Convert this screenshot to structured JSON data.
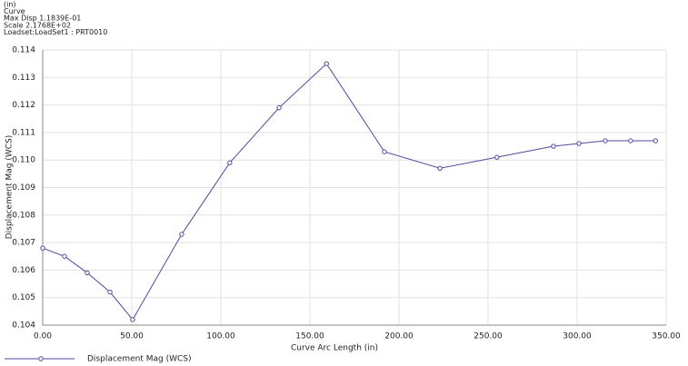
{
  "chart_data": {
    "type": "line",
    "annotations": [
      "(in)",
      "Curve",
      "Max Disp  1.1839E-01",
      "Scale  2.1768E+02",
      "Loadset:LoadSet1 :  PRT0010"
    ],
    "x_label": "Curve Arc Length (in)",
    "y_label": "Displacement Mag (WCS)",
    "x": [
      0,
      12.2,
      25,
      37.8,
      50.5,
      78,
      105,
      132.7,
      159.3,
      191.8,
      223,
      255,
      286.7,
      301,
      315.8,
      330,
      344
    ],
    "series": [
      {
        "name": "Displacement Mag (WCS)",
        "color": "#4b4b9e",
        "values": [
          0.1068,
          0.1065,
          0.1059,
          0.1052,
          0.1042,
          0.1073,
          0.1099,
          0.1119,
          0.1135,
          0.1103,
          0.1097,
          0.1101,
          0.1105,
          0.1106,
          0.1107,
          0.1107,
          0.1107
        ]
      }
    ],
    "xlim": [
      0,
      350
    ],
    "xticks": [
      {
        "value": 0,
        "label": "0.00"
      },
      {
        "value": 50,
        "label": "50.00"
      },
      {
        "value": 100,
        "label": "100.00"
      },
      {
        "value": 150,
        "label": "150.00"
      },
      {
        "value": 200,
        "label": "200.00"
      },
      {
        "value": 250,
        "label": "250.00"
      },
      {
        "value": 300,
        "label": "300.00"
      },
      {
        "value": 350,
        "label": "350.00"
      }
    ],
    "ylim": [
      0.104,
      0.114
    ],
    "yticks": [
      0.104,
      0.105,
      0.106,
      0.107,
      0.108,
      0.109,
      {
        "value": 0.11,
        "label": "0.110"
      },
      0.111,
      0.112,
      0.113,
      0.114
    ],
    "grid": true
  }
}
